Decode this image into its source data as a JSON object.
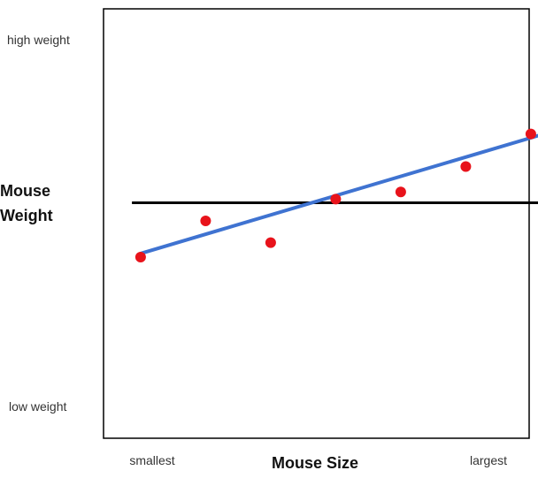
{
  "chart_data": {
    "type": "scatter",
    "title": "",
    "xlabel": "Mouse Size",
    "ylabel_lines": [
      "Mouse",
      "Weight"
    ],
    "x_tick_labels": {
      "low": "smallest",
      "high": "largest"
    },
    "y_tick_labels": {
      "high": "high weight",
      "low": "low weight"
    },
    "grid": false,
    "xlim": [
      0,
      10
    ],
    "ylim": [
      0,
      10
    ],
    "points": [
      {
        "x": 1.1,
        "y": 4.0
      },
      {
        "x": 2.6,
        "y": 5.0
      },
      {
        "x": 4.1,
        "y": 4.4
      },
      {
        "x": 5.6,
        "y": 5.6
      },
      {
        "x": 7.1,
        "y": 5.8
      },
      {
        "x": 8.6,
        "y": 6.5
      },
      {
        "x": 10.1,
        "y": 7.4
      }
    ],
    "mean_line": {
      "x_start": 0.9,
      "x_end": 10.4,
      "y": 5.5
    },
    "fit_line": {
      "x_start": 1.1,
      "y_start": 4.1,
      "x_end": 10.4,
      "y_end": 7.4
    },
    "colors": {
      "points": "#e8131b",
      "mean_line": "#000000",
      "fit_line": "#3f73d1",
      "frame": "#000000"
    }
  }
}
